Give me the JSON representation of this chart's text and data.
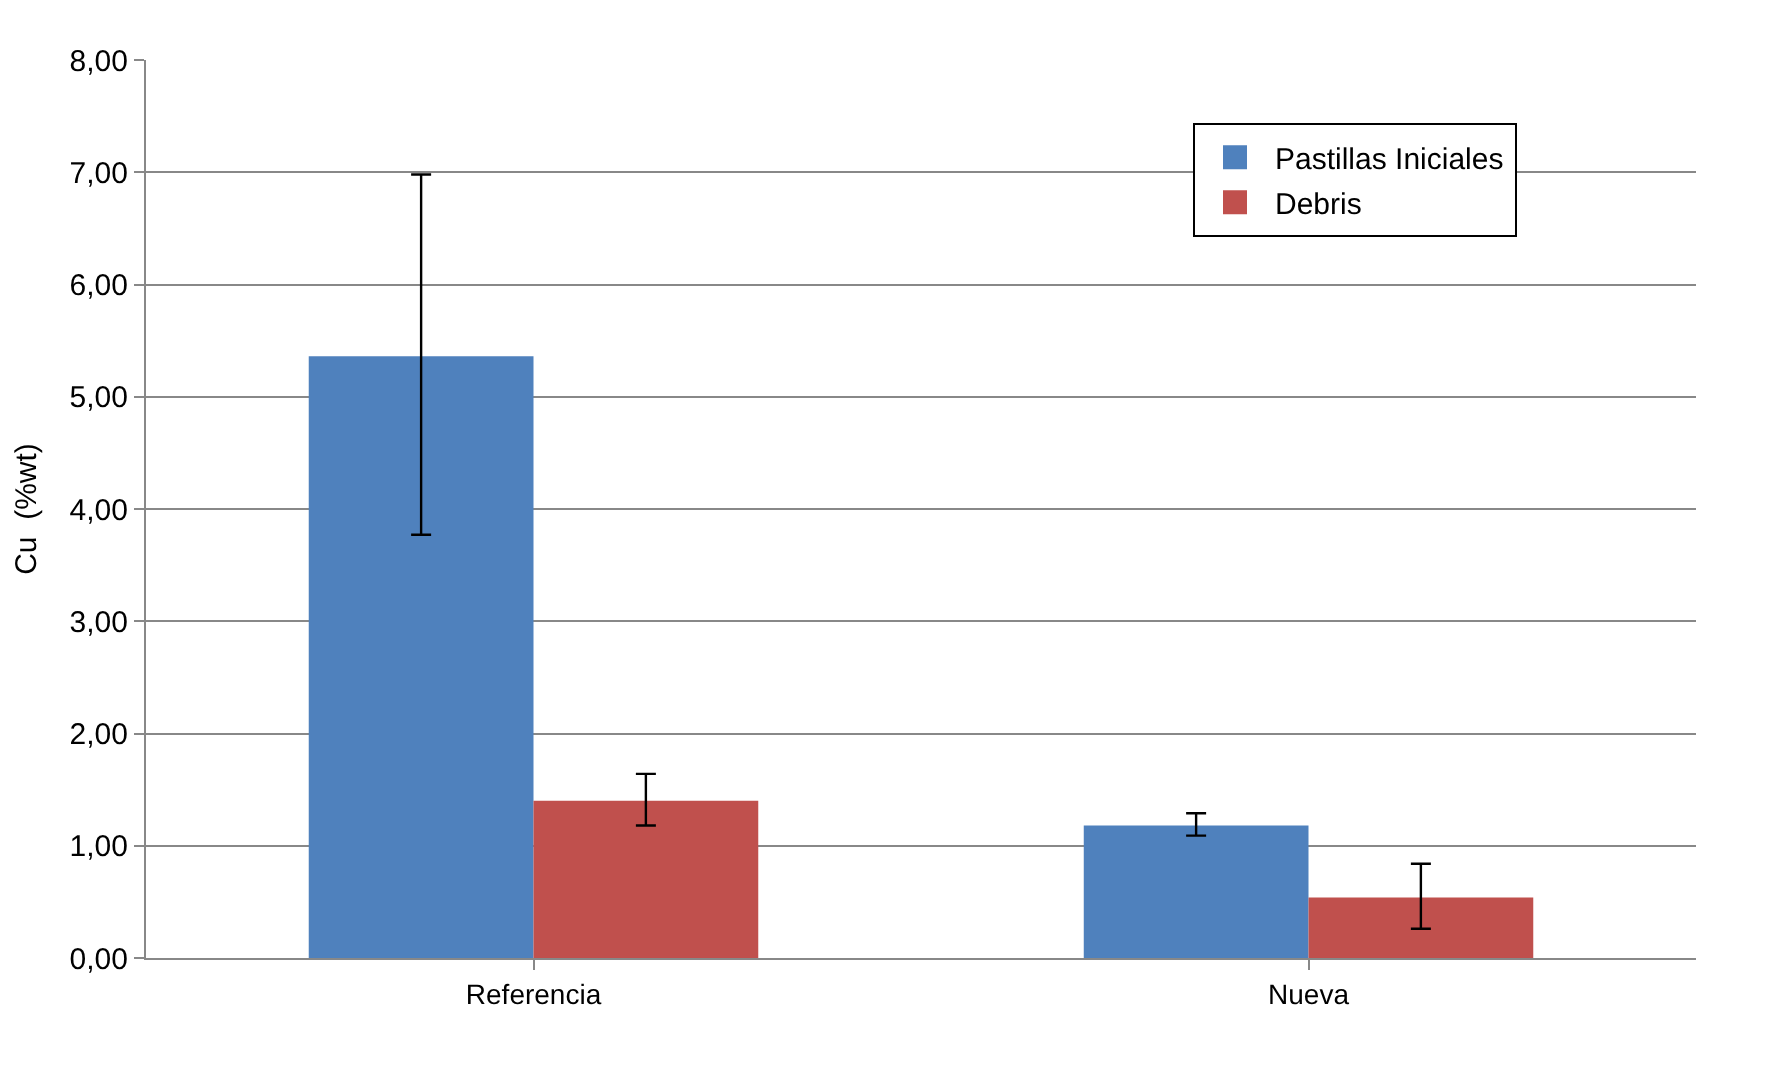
{
  "chart_data": {
    "type": "bar",
    "ylabel": "Cu  (%wt)",
    "categories": [
      "Referencia",
      "Nueva"
    ],
    "series": [
      {
        "name": "Pastillas Iniciales",
        "color": "#4f81bd",
        "values": [
          5.36,
          1.18
        ],
        "errors": [
          [
            3.77,
            6.98
          ],
          [
            1.09,
            1.29
          ]
        ]
      },
      {
        "name": "Debris",
        "color": "#c0504d",
        "values": [
          1.4,
          0.54
        ],
        "errors": [
          [
            1.18,
            1.64
          ],
          [
            0.26,
            0.84
          ]
        ]
      }
    ],
    "ylim": [
      0,
      8
    ],
    "yticks": [
      {
        "value": 0,
        "label": "0,00"
      },
      {
        "value": 1,
        "label": "1,00"
      },
      {
        "value": 2,
        "label": "2,00"
      },
      {
        "value": 3,
        "label": "3,00"
      },
      {
        "value": 4,
        "label": "4,00"
      },
      {
        "value": 5,
        "label": "5,00"
      },
      {
        "value": 6,
        "label": "6,00"
      },
      {
        "value": 7,
        "label": "7,00"
      },
      {
        "value": 8,
        "label": "8,00"
      }
    ],
    "grid": "y",
    "legend": "top right"
  }
}
